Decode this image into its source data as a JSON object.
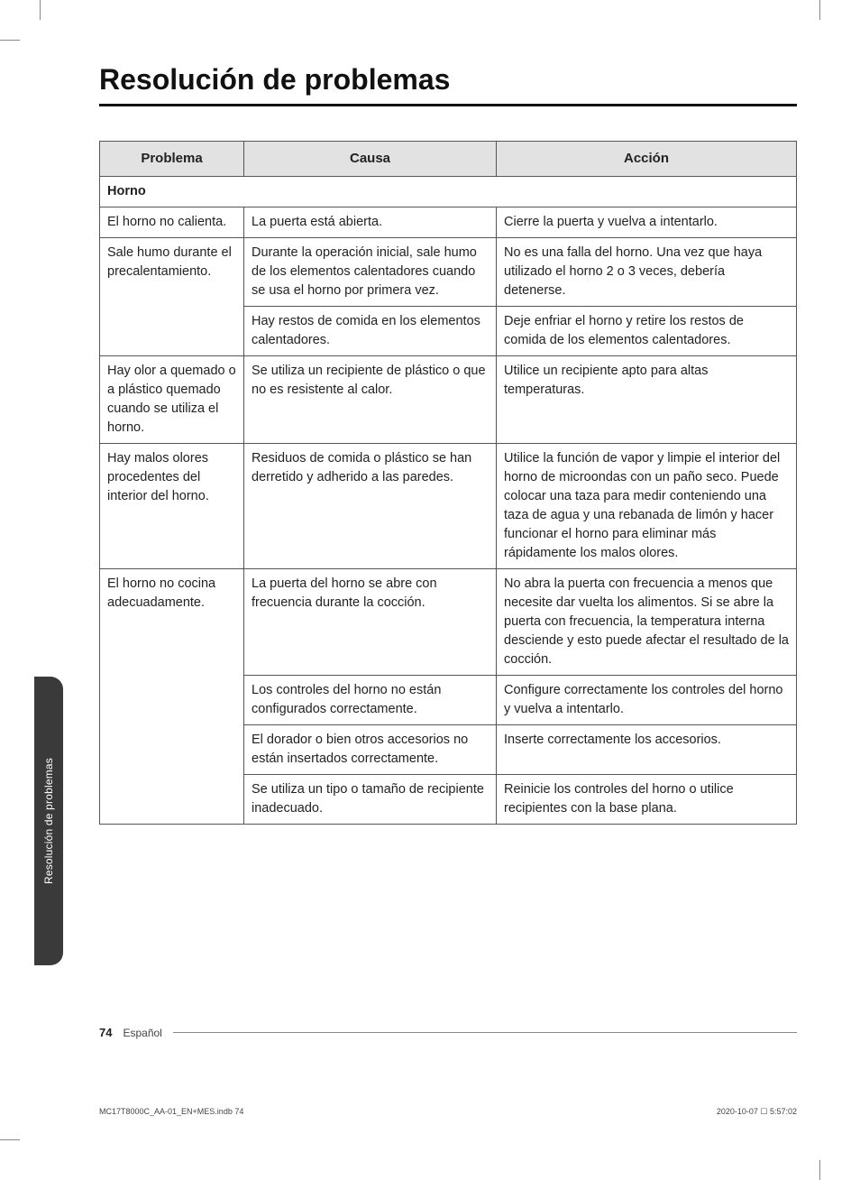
{
  "title": "Resolución de problemas",
  "side_tab": "Resolución de problemas",
  "headers": {
    "c1": "Problema",
    "c2": "Causa",
    "c3": "Acción"
  },
  "section": "Horno",
  "rows": [
    {
      "p": "El horno no calienta.",
      "c": "La puerta está abierta.",
      "a": "Cierre la puerta y vuelva a intentarlo.",
      "prows": 1
    },
    {
      "p": "Sale humo durante el precalentamiento.",
      "c": "Durante la operación inicial, sale humo de los elementos calentadores cuando se usa el horno por primera vez.",
      "a": "No es una falla del horno. Una vez que haya utilizado el horno 2 o 3 veces, debería detenerse.",
      "prows": 2
    },
    {
      "c": "Hay restos de comida en los elementos calentadores.",
      "a": "Deje enfriar el horno y retire los restos de comida de los elementos calentadores."
    },
    {
      "p": "Hay olor a quemado o a plástico quemado cuando se utiliza el horno.",
      "c": "Se utiliza un recipiente de plástico o que no es resistente al calor.",
      "a": "Utilice un recipiente apto para altas temperaturas.",
      "prows": 1
    },
    {
      "p": "Hay malos olores procedentes del interior del horno.",
      "c": "Residuos de comida o plástico se han derretido y adherido a las paredes.",
      "a": "Utilice la función de vapor y limpie el interior del horno de microondas con un paño seco. Puede colocar una taza para medir conteniendo una taza de agua y una rebanada de limón y hacer funcionar el horno para eliminar más rápidamente los malos olores.",
      "prows": 1
    },
    {
      "p": "El horno no cocina adecuadamente.",
      "c": "La puerta del horno se abre con frecuencia durante la cocción.",
      "a": "No abra la puerta con frecuencia a menos que necesite dar vuelta los alimentos. Si se abre la puerta con frecuencia, la temperatura interna desciende y esto puede afectar el resultado de la cocción.",
      "prows": 4
    },
    {
      "c": "Los controles del horno no están configurados correctamente.",
      "a": "Configure correctamente los controles del horno y vuelva a intentarlo."
    },
    {
      "c": "El dorador o bien otros accesorios no están insertados correctamente.",
      "a": "Inserte correctamente los accesorios."
    },
    {
      "c": "Se utiliza un tipo o tamaño de recipiente inadecuado.",
      "a": "Reinicie los controles del horno o utilice recipientes con la base plana."
    }
  ],
  "footer": {
    "page": "74",
    "lang": "Español"
  },
  "print": {
    "left": "MC17T8000C_AA-01_EN+MES.indb   74",
    "right": "2020-10-07   ☐ 5:57:02"
  }
}
